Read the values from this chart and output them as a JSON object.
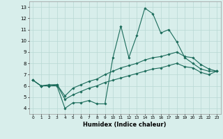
{
  "xlabel": "Humidex (Indice chaleur)",
  "xlim": [
    -0.5,
    23.5
  ],
  "ylim": [
    3.5,
    13.5
  ],
  "xticks": [
    0,
    1,
    2,
    3,
    4,
    5,
    6,
    7,
    8,
    9,
    10,
    11,
    12,
    13,
    14,
    15,
    16,
    17,
    18,
    19,
    20,
    21,
    22,
    23
  ],
  "yticks": [
    4,
    5,
    6,
    7,
    8,
    9,
    10,
    11,
    12,
    13
  ],
  "bg_color": "#d8eeeb",
  "grid_color": "#b8d8d4",
  "line_color": "#1a6b5a",
  "series1_x": [
    0,
    1,
    2,
    3,
    4,
    5,
    6,
    7,
    8,
    9,
    10,
    11,
    12,
    13,
    14,
    15,
    16,
    17,
    18,
    19,
    20,
    21,
    22,
    23
  ],
  "series1_y": [
    6.5,
    6.0,
    6.0,
    6.0,
    4.0,
    4.5,
    4.5,
    4.7,
    4.4,
    4.4,
    8.5,
    11.3,
    8.5,
    10.5,
    12.9,
    12.4,
    10.7,
    11.0,
    9.9,
    8.5,
    8.0,
    7.5,
    7.3,
    7.3
  ],
  "series2_x": [
    0,
    1,
    2,
    3,
    4,
    5,
    6,
    7,
    8,
    9,
    10,
    11,
    12,
    13,
    14,
    15,
    16,
    17,
    18,
    19,
    20,
    21,
    22,
    23
  ],
  "series2_y": [
    6.5,
    6.0,
    6.1,
    6.1,
    5.1,
    5.8,
    6.1,
    6.4,
    6.6,
    7.0,
    7.3,
    7.6,
    7.8,
    8.0,
    8.3,
    8.5,
    8.6,
    8.8,
    9.0,
    8.6,
    8.5,
    7.9,
    7.5,
    7.3
  ],
  "series3_x": [
    0,
    1,
    2,
    3,
    4,
    5,
    6,
    7,
    8,
    9,
    10,
    11,
    12,
    13,
    14,
    15,
    16,
    17,
    18,
    19,
    20,
    21,
    22,
    23
  ],
  "series3_y": [
    6.5,
    6.0,
    6.0,
    6.1,
    4.8,
    5.2,
    5.5,
    5.8,
    6.0,
    6.3,
    6.5,
    6.7,
    6.9,
    7.1,
    7.3,
    7.5,
    7.6,
    7.8,
    8.0,
    7.7,
    7.6,
    7.2,
    7.0,
    7.3
  ]
}
